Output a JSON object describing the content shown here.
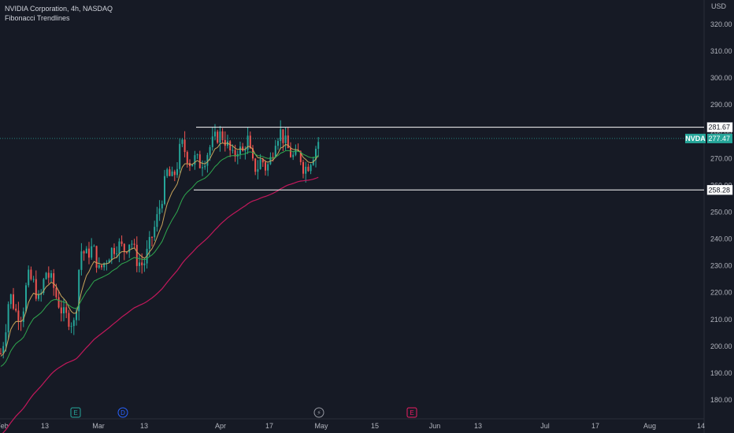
{
  "legend": {
    "title": "NVIDIA Corporation, 4h, NASDAQ",
    "indicator": "Fibonacci Trendlines"
  },
  "currency": "USD",
  "colors": {
    "bg": "#161a25",
    "up": "#26a69a",
    "down": "#ef5350",
    "ema_fast": "#c9a45a",
    "ema_mid": "#2fa84f",
    "ema_slow": "#c2185b",
    "level": "#ffffff",
    "ticker_bg": "#26a69a"
  },
  "chart_data": {
    "type": "candlestick",
    "ticker": "NVDA",
    "last_price": "277.47",
    "ylim": [
      173,
      327
    ],
    "y_ticks": [
      "180.00",
      "190.00",
      "200.00",
      "210.00",
      "220.00",
      "230.00",
      "240.00",
      "250.00",
      "260.00",
      "270.00",
      "280.00",
      "290.00",
      "300.00",
      "310.00",
      "320.00"
    ],
    "x_ticks": [
      "Feb",
      "13",
      "Mar",
      "13",
      "Apr",
      "17",
      "May",
      "15",
      "Jun",
      "13",
      "Jul",
      "17",
      "Aug",
      "14"
    ],
    "levels": [
      {
        "name": "resistance",
        "value": "281.67"
      },
      {
        "name": "support",
        "value": "258.28"
      }
    ],
    "events": [
      {
        "icon": "E",
        "label": "E",
        "kind": "earnings"
      },
      {
        "icon": "D",
        "label": "D",
        "kind": "dividend"
      },
      {
        "icon": "split",
        "label": "⚡",
        "kind": "split"
      },
      {
        "icon": "E",
        "label": "E",
        "kind": "earnings-upcoming"
      }
    ],
    "anchors": [
      [
        0,
        196
      ],
      [
        6,
        204
      ],
      [
        12,
        220
      ],
      [
        20,
        213
      ],
      [
        28,
        211
      ],
      [
        35,
        226
      ],
      [
        42,
        224
      ],
      [
        50,
        216
      ],
      [
        58,
        228
      ],
      [
        66,
        224
      ],
      [
        72,
        218
      ],
      [
        80,
        212
      ],
      [
        88,
        210
      ],
      [
        95,
        208
      ],
      [
        102,
        236
      ],
      [
        110,
        234
      ],
      [
        118,
        237
      ],
      [
        126,
        228
      ],
      [
        134,
        232
      ],
      [
        142,
        236
      ],
      [
        150,
        238
      ],
      [
        158,
        236
      ],
      [
        166,
        240
      ],
      [
        174,
        232
      ],
      [
        182,
        230
      ],
      [
        190,
        238
      ],
      [
        198,
        246
      ],
      [
        206,
        256
      ],
      [
        212,
        265
      ],
      [
        218,
        262
      ],
      [
        224,
        266
      ],
      [
        230,
        276
      ],
      [
        236,
        272
      ],
      [
        242,
        268
      ],
      [
        248,
        270
      ],
      [
        254,
        268
      ],
      [
        260,
        270
      ],
      [
        266,
        274
      ],
      [
        272,
        277
      ],
      [
        278,
        279
      ],
      [
        284,
        278
      ],
      [
        290,
        274
      ],
      [
        296,
        270
      ],
      [
        302,
        274
      ],
      [
        308,
        272
      ],
      [
        314,
        278
      ],
      [
        320,
        268
      ],
      [
        326,
        266
      ],
      [
        332,
        270
      ],
      [
        338,
        266
      ],
      [
        344,
        270
      ],
      [
        350,
        278
      ],
      [
        356,
        280
      ],
      [
        362,
        276
      ],
      [
        368,
        272
      ],
      [
        374,
        270
      ],
      [
        380,
        272
      ],
      [
        386,
        266
      ],
      [
        392,
        268
      ],
      [
        398,
        272
      ],
      [
        405,
        277
      ]
    ]
  }
}
